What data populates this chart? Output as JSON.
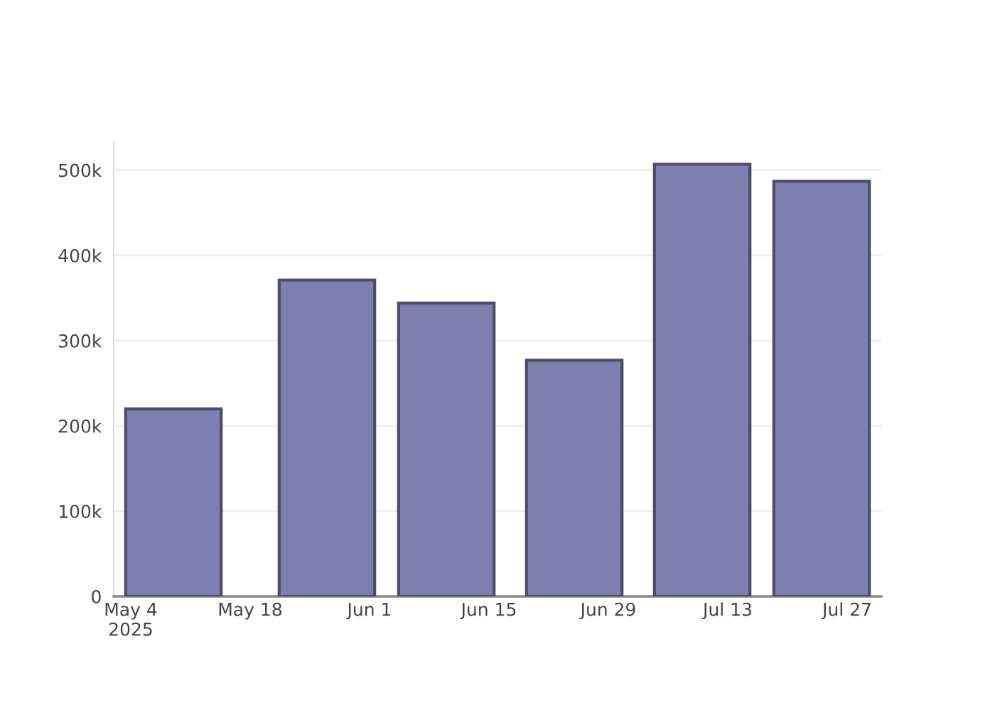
{
  "chart_data": {
    "type": "bar",
    "x": [
      "2025-05-09",
      "2025-05-27",
      "2025-06-10",
      "2025-06-25",
      "2025-07-10",
      "2025-07-24"
    ],
    "values": [
      220000,
      371000,
      344000,
      277000,
      507000,
      487000
    ],
    "color": "#7f7faf",
    "xlim": [
      "2025-05-02",
      "2025-07-31"
    ],
    "xticks": [
      {
        "value": "2025-05-04",
        "label": "May 4\n2025"
      },
      {
        "value": "2025-05-18",
        "label": "May 18"
      },
      {
        "value": "2025-06-01",
        "label": "Jun 1"
      },
      {
        "value": "2025-06-15",
        "label": "Jun 15"
      },
      {
        "value": "2025-06-29",
        "label": "Jun 29"
      },
      {
        "value": "2025-07-13",
        "label": "Jul 13"
      },
      {
        "value": "2025-07-27",
        "label": "Jul 27"
      }
    ],
    "ylim": [
      0,
      533000
    ],
    "yticks": [
      {
        "value": 0,
        "label": "0"
      },
      {
        "value": 100000,
        "label": "100k"
      },
      {
        "value": 200000,
        "label": "200k"
      },
      {
        "value": 300000,
        "label": "300k"
      },
      {
        "value": 400000,
        "label": "400k"
      },
      {
        "value": 500000,
        "label": "500k"
      }
    ],
    "grid": "y"
  }
}
